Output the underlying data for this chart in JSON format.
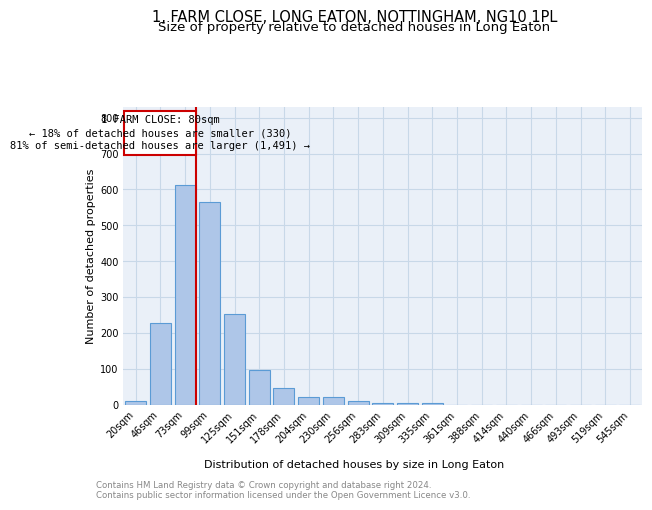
{
  "title": "1, FARM CLOSE, LONG EATON, NOTTINGHAM, NG10 1PL",
  "subtitle": "Size of property relative to detached houses in Long Eaton",
  "xlabel": "Distribution of detached houses by size in Long Eaton",
  "ylabel": "Number of detached properties",
  "categories": [
    "20sqm",
    "46sqm",
    "73sqm",
    "99sqm",
    "125sqm",
    "151sqm",
    "178sqm",
    "204sqm",
    "230sqm",
    "256sqm",
    "283sqm",
    "309sqm",
    "335sqm",
    "361sqm",
    "388sqm",
    "414sqm",
    "440sqm",
    "466sqm",
    "493sqm",
    "519sqm",
    "545sqm"
  ],
  "bar_values": [
    10,
    228,
    612,
    565,
    253,
    95,
    47,
    22,
    22,
    10,
    5,
    5,
    5,
    0,
    0,
    0,
    0,
    0,
    0,
    0,
    0
  ],
  "bar_color": "#aec6e8",
  "bar_edge_color": "#5b9bd5",
  "grid_color": "#c8d8e8",
  "bg_color": "#eaf0f8",
  "red_line_x": 2.45,
  "annotation_line1": "1 FARM CLOSE: 80sqm",
  "annotation_line2": "← 18% of detached houses are smaller (330)",
  "annotation_line3": "81% of semi-detached houses are larger (1,491) →",
  "annotation_box_color": "#cc0000",
  "ylim": [
    0,
    830
  ],
  "yticks": [
    0,
    100,
    200,
    300,
    400,
    500,
    600,
    700,
    800
  ],
  "footnote1": "Contains HM Land Registry data © Crown copyright and database right 2024.",
  "footnote2": "Contains public sector information licensed under the Open Government Licence v3.0.",
  "title_fontsize": 10.5,
  "subtitle_fontsize": 9.5,
  "axis_label_fontsize": 8,
  "tick_fontsize": 7,
  "annot_fontsize": 7.5
}
